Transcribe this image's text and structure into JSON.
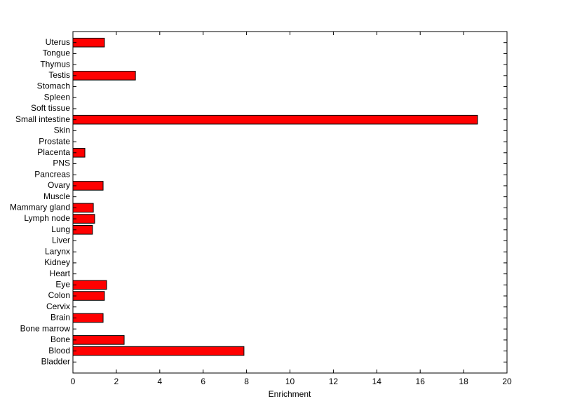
{
  "chart_data": {
    "type": "barh",
    "xlabel": "Enrichment",
    "categories": [
      "Bladder",
      "Blood",
      "Bone",
      "Bone marrow",
      "Brain",
      "Cervix",
      "Colon",
      "Eye",
      "Heart",
      "Kidney",
      "Larynx",
      "Liver",
      "Lung",
      "Lymph node",
      "Mammary gland",
      "Muscle",
      "Ovary",
      "Pancreas",
      "PNS",
      "Placenta",
      "Prostate",
      "Skin",
      "Small intestine",
      "Soft tissue",
      "Spleen",
      "Stomach",
      "Testis",
      "Thymus",
      "Tongue",
      "Uterus"
    ],
    "values": [
      0,
      7.88,
      2.36,
      0,
      1.39,
      0,
      1.45,
      1.55,
      0,
      0,
      0,
      0,
      0.9,
      1.0,
      0.94,
      0,
      1.39,
      0,
      0,
      0.55,
      0,
      0,
      18.64,
      0,
      0,
      0,
      2.88,
      0,
      0,
      1.45
    ],
    "color": "#ff0000",
    "xlim": [
      0,
      20
    ],
    "xticks": [
      0,
      2,
      4,
      6,
      8,
      10,
      12,
      14,
      16,
      18,
      20
    ]
  }
}
